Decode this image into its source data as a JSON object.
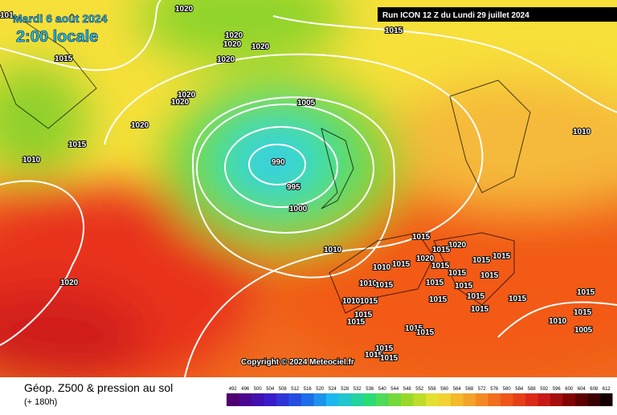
{
  "header": {
    "date": "Mardi 6 août 2024",
    "time": "2:00 locale",
    "run": "Run ICON 12 Z du Lundi 29 juillet 2024"
  },
  "copyright": "Copyright © 2024 Meteociel.fr",
  "footer": {
    "title": "Géop. Z500 & pression au sol",
    "lead": "(+ 180h)"
  },
  "legend": {
    "values": [
      492,
      496,
      500,
      504,
      508,
      512,
      516,
      520,
      524,
      528,
      532,
      536,
      540,
      544,
      548,
      552,
      556,
      560,
      564,
      568,
      572,
      576,
      580,
      584,
      588,
      592,
      596,
      600,
      604,
      608,
      612
    ]
  },
  "isobar_labels": [
    "101",
    "1020",
    "1020",
    "1020",
    "1020",
    "1020",
    "1015",
    "1020",
    "1020",
    "1020",
    "1005",
    "1015",
    "1010",
    "990",
    "995",
    "1000",
    "1015",
    "1010",
    "1010",
    "1020",
    "1015",
    "1020",
    "1015",
    "1020",
    "1015",
    "1010",
    "1015",
    "1015",
    "1015",
    "1015",
    "1015",
    "1010",
    "1015",
    "1015",
    "1015",
    "1015",
    "1015",
    "1015",
    "1015",
    "1010",
    "1015",
    "1015",
    "1015",
    "1015",
    "1015",
    "1010",
    "1015",
    "1015",
    "1005",
    "1015",
    "1015",
    "1015"
  ]
}
